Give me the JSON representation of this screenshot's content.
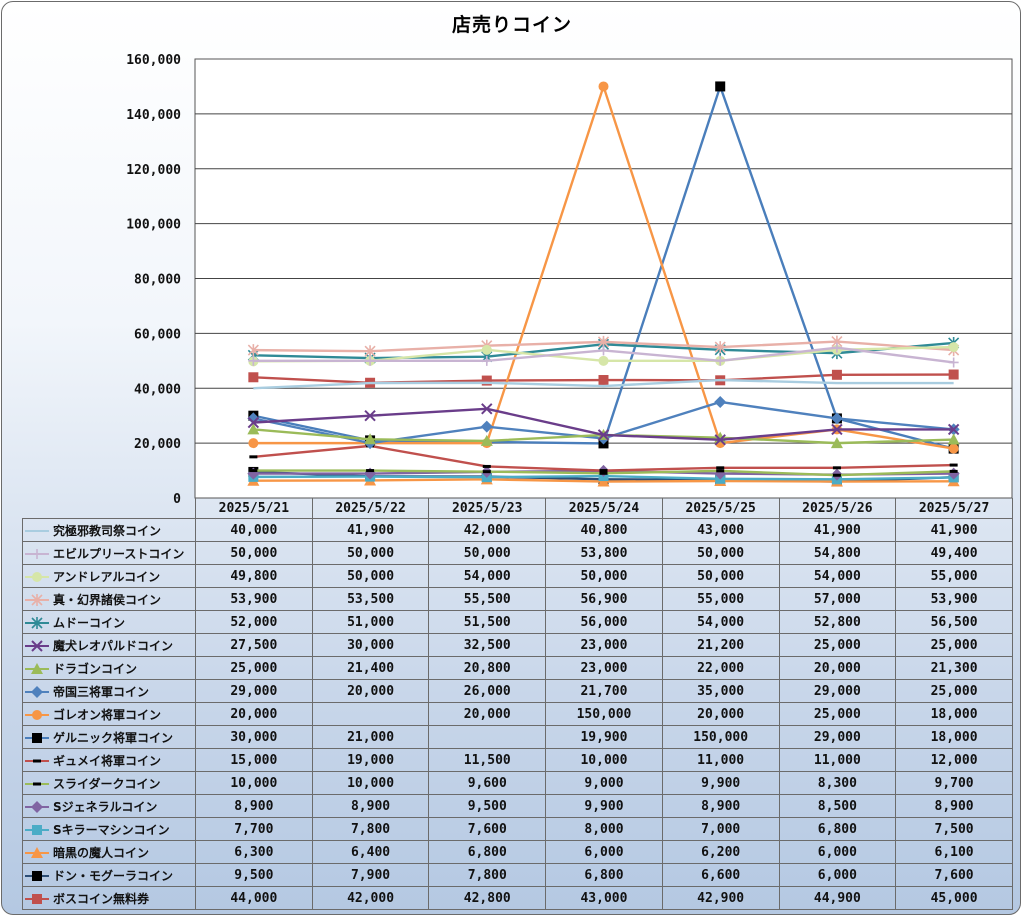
{
  "chart_data": {
    "type": "line",
    "title": "店売りコイン",
    "x": [
      "2025/5/21",
      "2025/5/22",
      "2025/5/23",
      "2025/5/24",
      "2025/5/25",
      "2025/5/26",
      "2025/5/27"
    ],
    "ylim": [
      0,
      160000
    ],
    "yticks": [
      "0",
      "20,000",
      "40,000",
      "60,000",
      "80,000",
      "100,000",
      "120,000",
      "140,000",
      "160,000"
    ],
    "grid": true,
    "legend": "data-table",
    "series": [
      {
        "name": "究極邪教司祭コイン",
        "color": "#a9cde0",
        "marker": "none",
        "values": [
          40000,
          41900,
          42000,
          40800,
          43000,
          41900,
          41900
        ],
        "labels": [
          "40,000",
          "41,900",
          "42,000",
          "40,800",
          "43,000",
          "41,900",
          "41,900"
        ]
      },
      {
        "name": "エビルプリーストコイン",
        "color": "#c8b4d2",
        "marker": "plus",
        "values": [
          50000,
          50000,
          50000,
          53800,
          50000,
          54800,
          49400
        ],
        "labels": [
          "50,000",
          "50,000",
          "50,000",
          "53,800",
          "50,000",
          "54,800",
          "49,400"
        ]
      },
      {
        "name": "アンドレアルコイン",
        "color": "#d6e6a8",
        "marker": "circle",
        "values": [
          49800,
          50000,
          54000,
          50000,
          50000,
          54000,
          55000
        ],
        "labels": [
          "49,800",
          "50,000",
          "54,000",
          "50,000",
          "50,000",
          "54,000",
          "55,000"
        ]
      },
      {
        "name": "真・幻界諸侯コイン",
        "color": "#e8b0a8",
        "marker": "star",
        "values": [
          53900,
          53500,
          55500,
          56900,
          55000,
          57000,
          53900
        ],
        "labels": [
          "53,900",
          "53,500",
          "55,500",
          "56,900",
          "55,000",
          "57,000",
          "53,900"
        ]
      },
      {
        "name": "ムドーコイン",
        "color": "#2f8a96",
        "marker": "star",
        "values": [
          52000,
          51000,
          51500,
          56000,
          54000,
          52800,
          56500
        ],
        "labels": [
          "52,000",
          "51,000",
          "51,500",
          "56,000",
          "54,000",
          "52,800",
          "56,500"
        ]
      },
      {
        "name": "魔犬レオパルドコイン",
        "color": "#6a3d8a",
        "marker": "x",
        "values": [
          27500,
          30000,
          32500,
          23000,
          21200,
          25000,
          25000
        ],
        "labels": [
          "27,500",
          "30,000",
          "32,500",
          "23,000",
          "21,200",
          "25,000",
          "25,000"
        ]
      },
      {
        "name": "ドラゴンコイン",
        "color": "#9bbb59",
        "marker": "triangle",
        "values": [
          25000,
          21400,
          20800,
          23000,
          22000,
          20000,
          21300
        ],
        "labels": [
          "25,000",
          "21,400",
          "20,800",
          "23,000",
          "22,000",
          "20,000",
          "21,300"
        ]
      },
      {
        "name": "帝国三将軍コイン",
        "color": "#4f81bd",
        "marker": "diamond",
        "values": [
          29000,
          20000,
          26000,
          21700,
          35000,
          29000,
          25000
        ],
        "labels": [
          "29,000",
          "20,000",
          "26,000",
          "21,700",
          "35,000",
          "29,000",
          "25,000"
        ]
      },
      {
        "name": "ゴレオン将軍コイン",
        "color": "#f79646",
        "marker": "circle",
        "values": [
          20000,
          null,
          20000,
          150000,
          20000,
          25000,
          18000
        ],
        "labels": [
          "20,000",
          "",
          "20,000",
          "150,000",
          "20,000",
          "25,000",
          "18,000"
        ]
      },
      {
        "name": "ゲルニック将軍コイン",
        "color": "#4a7ebb",
        "marker": "square-black",
        "values": [
          30000,
          21000,
          null,
          19900,
          150000,
          29000,
          18000
        ],
        "labels": [
          "30,000",
          "21,000",
          "",
          "19,900",
          "150,000",
          "29,000",
          "18,000"
        ]
      },
      {
        "name": "ギュメイ将軍コイン",
        "color": "#c0504d",
        "marker": "dash-black",
        "values": [
          15000,
          19000,
          11500,
          10000,
          11000,
          11000,
          12000
        ],
        "labels": [
          "15,000",
          "19,000",
          "11,500",
          "10,000",
          "11,000",
          "11,000",
          "12,000"
        ]
      },
      {
        "name": "スライダークコイン",
        "color": "#9bbb59",
        "marker": "dash-black",
        "values": [
          10000,
          10000,
          9600,
          9000,
          9900,
          8300,
          9700
        ],
        "labels": [
          "10,000",
          "10,000",
          "9,600",
          "9,000",
          "9,900",
          "8,300",
          "9,700"
        ]
      },
      {
        "name": "Sジェネラルコイン",
        "color": "#8064a2",
        "marker": "diamond",
        "values": [
          8900,
          8900,
          9500,
          9900,
          8900,
          8500,
          8900
        ],
        "labels": [
          "8,900",
          "8,900",
          "9,500",
          "9,900",
          "8,900",
          "8,500",
          "8,900"
        ]
      },
      {
        "name": "Sキラーマシンコイン",
        "color": "#4bacc6",
        "marker": "square",
        "values": [
          7700,
          7800,
          7600,
          8000,
          7000,
          6800,
          7500
        ],
        "labels": [
          "7,700",
          "7,800",
          "7,600",
          "8,000",
          "7,000",
          "6,800",
          "7,500"
        ]
      },
      {
        "name": "暗黒の魔人コイン",
        "color": "#f79646",
        "marker": "triangle",
        "values": [
          6300,
          6400,
          6800,
          6000,
          6200,
          6000,
          6100
        ],
        "labels": [
          "6,300",
          "6,400",
          "6,800",
          "6,000",
          "6,200",
          "6,000",
          "6,100"
        ]
      },
      {
        "name": "ドン・モグーラコイン",
        "color": "#2c4d75",
        "marker": "square-black",
        "values": [
          9500,
          7900,
          7800,
          6800,
          6600,
          6000,
          7600
        ],
        "labels": [
          "9,500",
          "7,900",
          "7,800",
          "6,800",
          "6,600",
          "6,000",
          "7,600"
        ]
      },
      {
        "name": "ボスコイン無料券",
        "color": "#c0504d",
        "marker": "square",
        "values": [
          44000,
          42000,
          42800,
          43000,
          42900,
          44900,
          45000
        ],
        "labels": [
          "44,000",
          "42,000",
          "42,800",
          "43,000",
          "42,900",
          "44,900",
          "45,000"
        ]
      }
    ]
  }
}
